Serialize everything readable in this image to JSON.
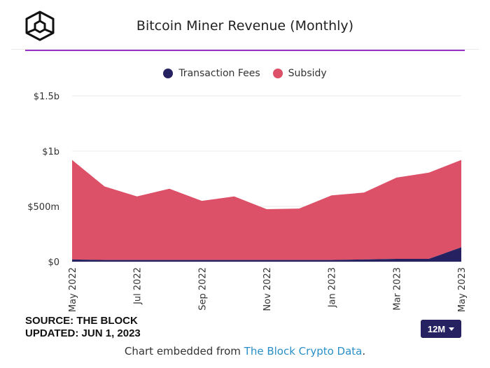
{
  "header": {
    "title": "Bitcoin Miner Revenue (Monthly)"
  },
  "controls": {
    "range_label": "12M"
  },
  "source": {
    "line1": "SOURCE: THE BLOCK",
    "line2": "UPDATED: JUN 1, 2023"
  },
  "footer": {
    "prefix": "Chart embedded from ",
    "link": "The Block Crypto Data",
    "suffix": "."
  },
  "colors": {
    "transaction_fees": "#262262",
    "subsidy": "#dc5068",
    "accent": "#9b30c8",
    "button": "#262262",
    "link": "#2a8fc7"
  },
  "chart_data": {
    "type": "area",
    "stacked": true,
    "title": "Bitcoin Miner Revenue (Monthly)",
    "x": [
      "May 2022",
      "Jun 2022",
      "Jul 2022",
      "Aug 2022",
      "Sep 2022",
      "Oct 2022",
      "Nov 2022",
      "Dec 2022",
      "Jan 2023",
      "Feb 2023",
      "Mar 2023",
      "Apr 2023",
      "May 2023"
    ],
    "x_tick_labels": [
      "May 2022",
      "Jul 2022",
      "Sep 2022",
      "Nov 2022",
      "Jan 2023",
      "Mar 2023",
      "May 2023"
    ],
    "series": [
      {
        "name": "Transaction Fees",
        "values": [
          20,
          15,
          15,
          15,
          15,
          15,
          15,
          15,
          15,
          20,
          25,
          25,
          130
        ]
      },
      {
        "name": "Subsidy",
        "values": [
          900,
          665,
          575,
          645,
          535,
          575,
          460,
          465,
          585,
          605,
          735,
          780,
          790
        ]
      }
    ],
    "y_tick_labels": [
      "$0",
      "$500m",
      "$1b",
      "$1.5b"
    ],
    "y_ticks": [
      0,
      500,
      1000,
      1500
    ],
    "ylim": [
      0,
      1500
    ],
    "y_unit": "million USD",
    "grid": true,
    "legend": "top-center"
  }
}
